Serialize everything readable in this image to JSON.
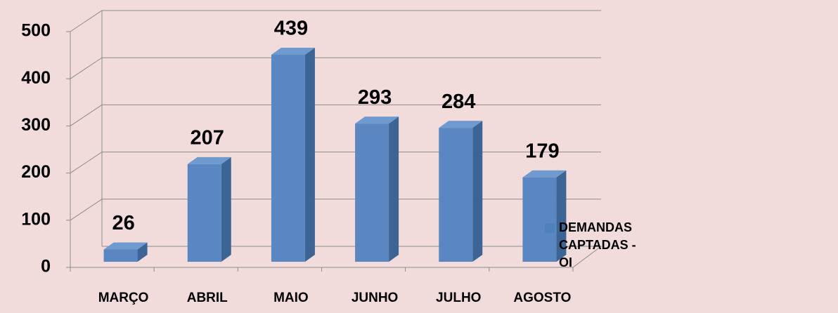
{
  "chart_data": {
    "type": "bar",
    "categories": [
      "MARÇO",
      "ABRIL",
      "MAIO",
      "JUNHO",
      "JULHO",
      "AGOSTO"
    ],
    "series": [
      {
        "name": "DEMANDAS CAPTADAS - OI",
        "color": "#4f81bd",
        "values": [
          26,
          207,
          439,
          293,
          284,
          179
        ]
      }
    ],
    "ylim": [
      0,
      500
    ],
    "yticks": [
      0,
      100,
      200,
      300,
      400,
      500
    ],
    "grid": true,
    "legend": "right"
  }
}
